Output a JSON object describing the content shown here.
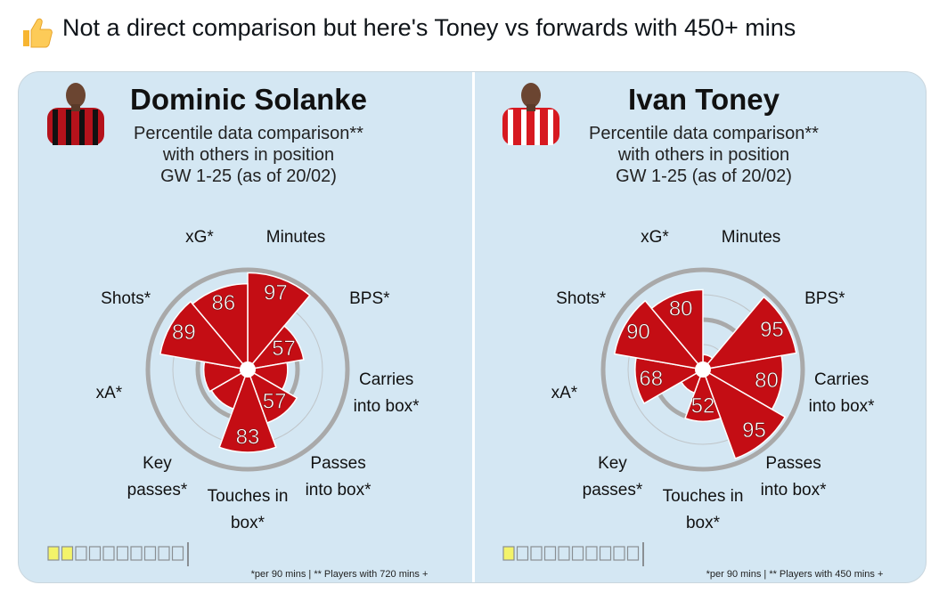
{
  "tweet": {
    "text": "Not a direct comparison but here's Toney vs forwards with 450+ mins"
  },
  "chart_data": [
    {
      "type": "polar-bar",
      "title": "Dominic Solanke",
      "subtitle": [
        "Percentile data comparison**",
        "with others in position",
        "GW 1-25 (as of 20/02)"
      ],
      "categories": [
        "Minutes",
        "BPS*",
        "Carries into box*",
        "Passes into box*",
        "Touches in box*",
        "Key passes*",
        "xA*",
        "Shots*",
        "xG*"
      ],
      "values": [
        97,
        57,
        40,
        57,
        83,
        42,
        44,
        89,
        86
      ],
      "color": "#c40d14",
      "ylim": [
        0,
        100
      ],
      "yticks": [
        25,
        50,
        75,
        100
      ],
      "label_min": 50,
      "footnote": "*per 90 mins | ** Players with 720 mins +",
      "indicator": {
        "filled": 2,
        "total": 10
      }
    },
    {
      "type": "polar-bar",
      "title": "Ivan Toney",
      "subtitle": [
        "Percentile data comparison**",
        "with others in position",
        "GW 1-25 (as of 20/02)"
      ],
      "categories": [
        "Minutes",
        "BPS*",
        "Carries into box*",
        "Passes into box*",
        "Touches in box*",
        "Key passes*",
        "xA*",
        "Shots*",
        "xG*"
      ],
      "values": [
        15,
        95,
        80,
        95,
        52,
        25,
        68,
        90,
        80
      ],
      "color": "#c40d14",
      "ylim": [
        0,
        100
      ],
      "yticks": [
        25,
        50,
        75,
        100
      ],
      "label_min": 50,
      "footnote": "*per 90 mins | ** Players with 450 mins +",
      "indicator": {
        "filled": 1,
        "total": 10
      }
    }
  ]
}
